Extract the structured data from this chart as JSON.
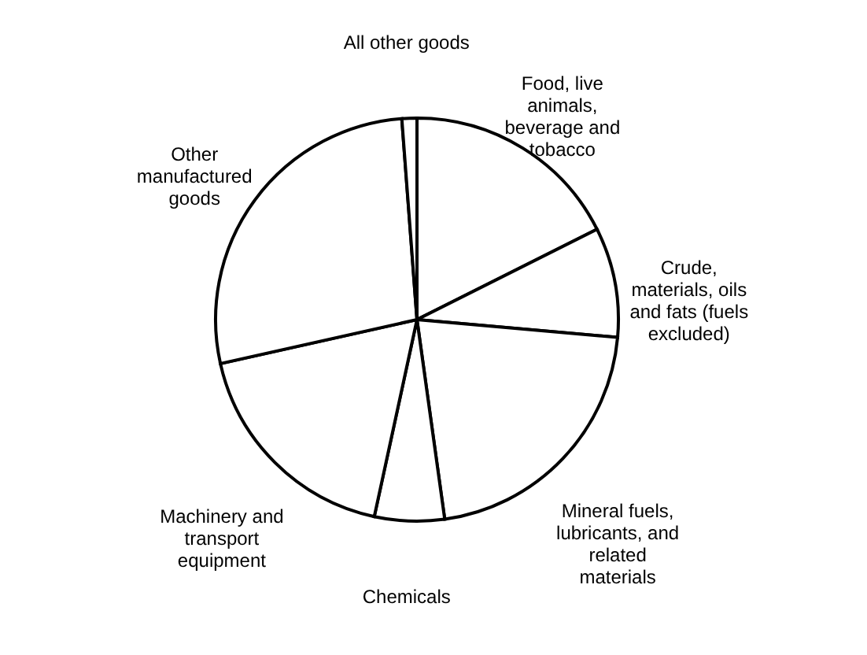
{
  "chart_data": {
    "type": "pie",
    "categories": [
      "Food, live animals, beverage and tobacco",
      "Crude, materials, oils and fats (fuels excluded)",
      "Mineral fuels, lubricants, and related materials",
      "Chemicals",
      "Machinery and transport equipment",
      "Other manufactured goods",
      "All other goods"
    ],
    "values": [
      17.6,
      8.8,
      21.4,
      5.6,
      18.1,
      27.3,
      1.2
    ],
    "colors": [
      "#ffffff",
      "#ffffff",
      "#ffffff",
      "#ffffff",
      "#ffffff",
      "#ffffff",
      "#ffffff"
    ]
  }
}
